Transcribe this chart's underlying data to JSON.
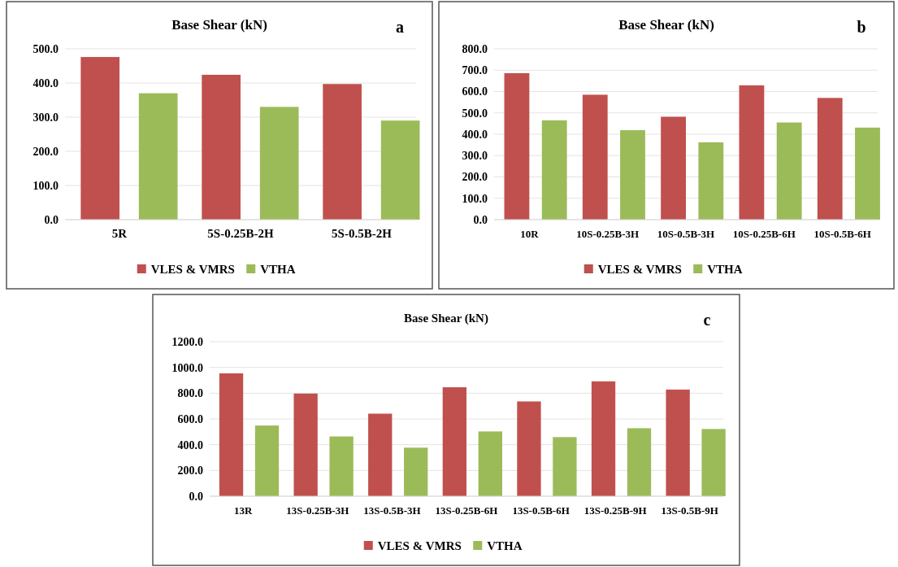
{
  "chart_data": [
    {
      "type": "bar",
      "title": "Base Shear (kN)",
      "annotations": [
        "a"
      ],
      "categories": [
        "5R",
        "5S-0.25B-2H",
        "5S-0.5B-2H"
      ],
      "series": [
        {
          "name": "VLES & VMRS",
          "color": "#c0504d",
          "values": [
            476,
            424,
            397
          ]
        },
        {
          "name": "VTHA",
          "color": "#9bbb59",
          "values": [
            370,
            330,
            290
          ]
        }
      ],
      "ylim": [
        0,
        500
      ],
      "yticks": [
        {
          "value": 0,
          "label": "0.0"
        },
        {
          "value": 100,
          "label": "100.0"
        },
        {
          "value": 200,
          "label": "200.0"
        },
        {
          "value": 300,
          "label": "300.0"
        },
        {
          "value": 400,
          "label": "400.0"
        },
        {
          "value": 500,
          "label": "500.0"
        }
      ],
      "grid": "y",
      "legend": "bottom"
    },
    {
      "type": "bar",
      "title": "Base Shear (kN)",
      "annotations": [
        "b"
      ],
      "categories": [
        "10R",
        "10S-0.25B-3H",
        "10S-0.5B-3H",
        "10S-0.25B-6H",
        "10S-0.5B-6H"
      ],
      "series": [
        {
          "name": "VLES & VMRS",
          "color": "#c0504d",
          "values": [
            686,
            585,
            482,
            629,
            570
          ]
        },
        {
          "name": "VTHA",
          "color": "#9bbb59",
          "values": [
            465,
            419,
            362,
            455,
            431
          ]
        }
      ],
      "ylim": [
        0,
        800
      ],
      "yticks": [
        {
          "value": 0,
          "label": "0.0"
        },
        {
          "value": 100,
          "label": "100.0"
        },
        {
          "value": 200,
          "label": "200.0"
        },
        {
          "value": 300,
          "label": "300.0"
        },
        {
          "value": 400,
          "label": "400.0"
        },
        {
          "value": 500,
          "label": "500.0"
        },
        {
          "value": 600,
          "label": "600.0"
        },
        {
          "value": 700,
          "label": "700.0"
        },
        {
          "value": 800,
          "label": "800.0"
        }
      ],
      "grid": "y",
      "legend": "bottom"
    },
    {
      "type": "bar",
      "title": "Base Shear (kN)",
      "annotations": [
        "c"
      ],
      "categories": [
        "13R",
        "13S-0.25B-3H",
        "13S-0.5B-3H",
        "13S-0.25B-6H",
        "13S-0.5B-6H",
        "13S-0.25B-9H",
        "13S-0.5B-9H"
      ],
      "series": [
        {
          "name": "VLES & VMRS",
          "color": "#c0504d",
          "values": [
            954,
            797,
            641,
            846,
            736,
            892,
            828
          ]
        },
        {
          "name": "VTHA",
          "color": "#9bbb59",
          "values": [
            549,
            464,
            377,
            503,
            459,
            528,
            522
          ]
        }
      ],
      "ylim": [
        0,
        1200
      ],
      "yticks": [
        {
          "value": 0,
          "label": "0.0"
        },
        {
          "value": 200,
          "label": "200.0"
        },
        {
          "value": 400,
          "label": "400.0"
        },
        {
          "value": 600,
          "label": "600.0"
        },
        {
          "value": 800,
          "label": "800.0"
        },
        {
          "value": 1000,
          "label": "1000.0"
        },
        {
          "value": 1200,
          "label": "1200.0"
        }
      ],
      "grid": "y",
      "legend": "bottom"
    }
  ]
}
